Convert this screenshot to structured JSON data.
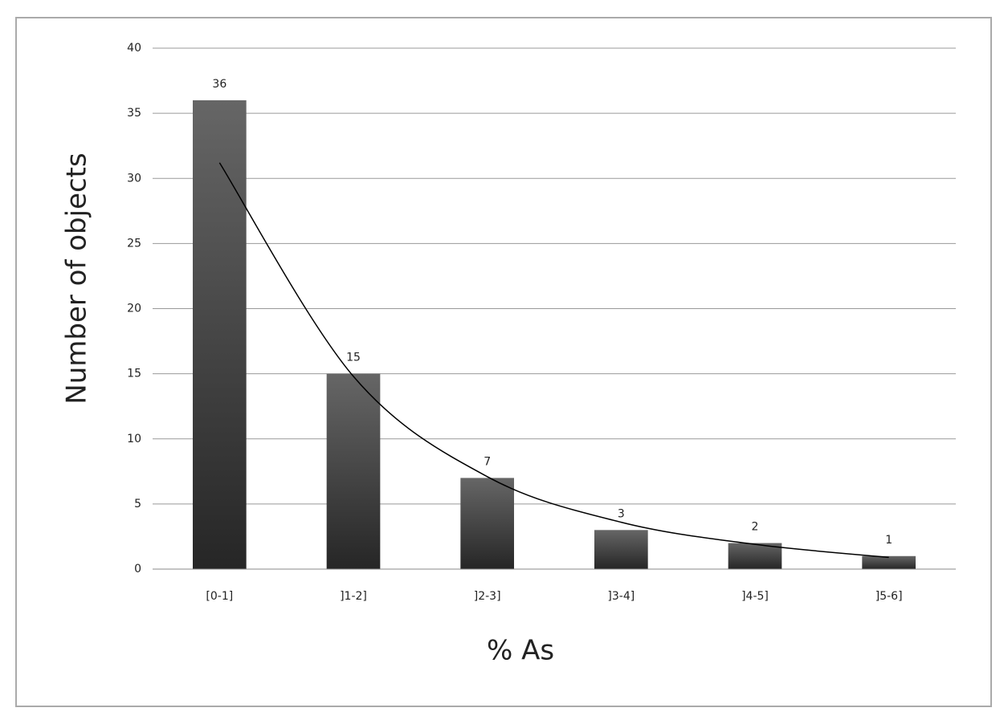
{
  "chart_data": {
    "type": "bar",
    "x_label": "% As",
    "y_label": "Number of objects",
    "categories": [
      "[0-1]",
      "]1-2]",
      "]2-3]",
      "]3-4]",
      "]4-5]",
      "]5-6]"
    ],
    "values": [
      36,
      15,
      7,
      3,
      2,
      1
    ],
    "trendline": {
      "values": [
        31.2,
        14.8,
        7.1,
        3.6,
        1.9,
        0.9
      ],
      "color": "#000000"
    },
    "ylim": [
      0,
      40
    ],
    "yticks": [
      0,
      5,
      10,
      15,
      20,
      25,
      30,
      35,
      40
    ],
    "grid": true
  }
}
